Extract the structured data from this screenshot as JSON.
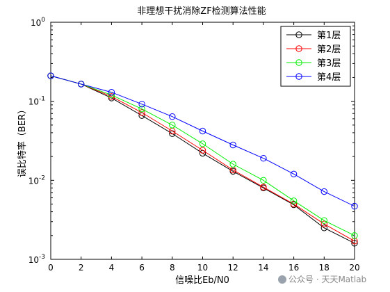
{
  "chart_data": {
    "type": "line",
    "title": "非理想干扰消除ZF检测算法性能",
    "xlabel": "信噪比Eb/N0",
    "ylabel": "误比特率（BER）",
    "xlim": [
      0,
      20
    ],
    "ylim": [
      0.001,
      1
    ],
    "yscale": "log",
    "grid": false,
    "legend_position": "top-right",
    "x_ticks": [
      "0",
      "2",
      "4",
      "6",
      "8",
      "10",
      "12",
      "14",
      "16",
      "18",
      "20"
    ],
    "y_ticks": [
      {
        "base": "10",
        "exp": "0"
      },
      {
        "base": "10",
        "exp": "-1"
      },
      {
        "base": "10",
        "exp": "-2"
      },
      {
        "base": "10",
        "exp": "-3"
      }
    ],
    "x": [
      0,
      2,
      4,
      6,
      8,
      10,
      12,
      14,
      16,
      18,
      20
    ],
    "series": [
      {
        "name": "第1层",
        "color": "#000000",
        "marker": "circle",
        "values": [
          0.21,
          0.165,
          0.11,
          0.066,
          0.039,
          0.022,
          0.013,
          0.008,
          0.0049,
          0.0025,
          0.0016
        ]
      },
      {
        "name": "第2层",
        "color": "#ff0000",
        "marker": "circle",
        "values": [
          0.21,
          0.165,
          0.115,
          0.072,
          0.042,
          0.024,
          0.0135,
          0.0082,
          0.005,
          0.0028,
          0.0017
        ]
      },
      {
        "name": "第3层",
        "color": "#00ee00",
        "marker": "circle",
        "values": [
          0.21,
          0.165,
          0.12,
          0.08,
          0.05,
          0.029,
          0.016,
          0.01,
          0.0055,
          0.0031,
          0.002
        ]
      },
      {
        "name": "第4层",
        "color": "#0000ff",
        "marker": "circle",
        "values": [
          0.21,
          0.165,
          0.13,
          0.092,
          0.064,
          0.042,
          0.028,
          0.019,
          0.012,
          0.0072,
          0.0047
        ]
      }
    ]
  },
  "watermark": {
    "icon": "wechat-icon",
    "text": "公众号 · 天天Matlab"
  }
}
